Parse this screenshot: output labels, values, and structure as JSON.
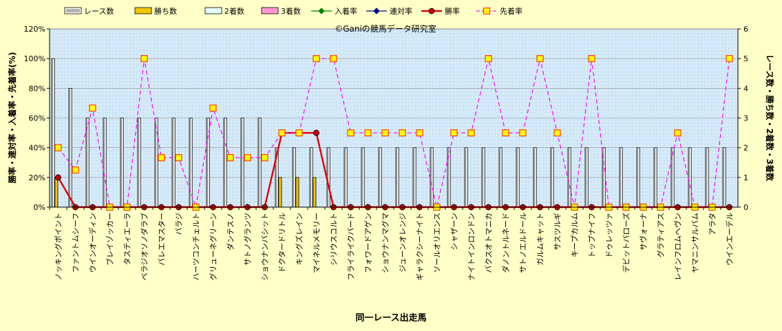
{
  "chart_data": {
    "type": "bar",
    "watermark": "©Ganiの競馬データ研究室",
    "xlabel": "同一レース出走馬",
    "ylabel_left": "勝率・連対率・入着率・先着率(%)",
    "ylabel_right": "レース数・勝ち数・2着数・3着数",
    "ylim_left": [
      0,
      120
    ],
    "yticks_left": [
      "0%",
      "20%",
      "40%",
      "60%",
      "80%",
      "100%",
      "120%"
    ],
    "ylim_right": [
      0,
      6
    ],
    "yticks_right": [
      "0",
      "1",
      "2",
      "3",
      "4",
      "5",
      "6"
    ],
    "grid": "horizontal",
    "legend_position": "top",
    "colors": {
      "background": "#ffffc8",
      "plot_bg": "#cfe6f6",
      "races_bar": "#ffffff",
      "wins_bar": "#f2c500",
      "second_bar": "#e4fbfb",
      "third_bar": "#ff9ad0",
      "place_rate": "#008000",
      "rentai_rate": "#000080",
      "win_rate": "#e00000",
      "senchaku_rate": "#ff00ff",
      "watermark": "#5a8fd6"
    },
    "categories": [
      "ノッキングポイント",
      "ファントムシーフ",
      "ウインオーディン",
      "ブレイゾッカー",
      "タスティエーラ",
      "ベラジオソノダラブ",
      "バレエマスター",
      "バラジ",
      "ハーツコンチェルト",
      "グリューネグリーン",
      "ダンテスノ",
      "サトノグランツ",
      "ショウナンバシット",
      "ドクタードリトル",
      "キングズレイン",
      "マイネルメモリー",
      "シリウスコルト",
      "フライライクバード",
      "フォワードアゲン",
      "ショウナンマグマ",
      "ジューンオレンジ",
      "ギャラクシーナイト",
      "ソールオリエンス",
      "シャザーン",
      "ナイトインロンドン",
      "バクスオトマニカ",
      "ダノントルネード",
      "サトノエルドール",
      "ガルムキャット",
      "サスツルギ",
      "キープカルム",
      "トップナイフ",
      "ドゥレッツァ",
      "デビットバローズ",
      "サヴォーナ",
      "グラティアス",
      "レインフロムヘヴン",
      "ヤマニンサルバム",
      "アラタ",
      "ウインエーデル"
    ],
    "series": [
      {
        "name": "レース数",
        "kind": "bar",
        "axis": "right",
        "values": [
          5,
          4,
          3,
          3,
          3,
          3,
          3,
          3,
          3,
          3,
          3,
          3,
          3,
          2,
          2,
          2,
          2,
          2,
          2,
          2,
          2,
          2,
          2,
          2,
          2,
          2,
          2,
          2,
          2,
          2,
          2,
          2,
          2,
          2,
          2,
          2,
          2,
          2,
          2,
          2
        ]
      },
      {
        "name": "勝ち数",
        "kind": "bar",
        "axis": "right",
        "values": [
          1,
          0,
          0,
          0,
          0,
          0,
          0,
          0,
          0,
          0,
          0,
          0,
          0,
          1,
          1,
          1,
          0,
          0,
          0,
          0,
          0,
          0,
          0,
          0,
          0,
          0,
          0,
          0,
          0,
          0,
          0,
          0,
          0,
          0,
          0,
          0,
          0,
          0,
          0,
          0
        ]
      },
      {
        "name": "2着数",
        "kind": "bar",
        "axis": "right",
        "values": [
          0,
          0,
          0,
          0,
          0,
          0,
          0,
          0,
          0,
          0,
          0,
          0,
          0,
          0,
          0,
          0,
          0,
          0,
          0,
          0,
          0,
          0,
          0,
          0,
          0,
          0,
          0,
          0,
          0,
          0,
          0,
          0,
          0,
          0,
          0,
          0,
          0,
          0,
          0,
          0
        ]
      },
      {
        "name": "3着数",
        "kind": "bar",
        "axis": "right",
        "values": [
          0,
          0,
          0,
          0,
          0,
          0,
          0,
          0,
          0,
          0,
          0,
          0,
          0,
          0,
          0,
          0,
          0,
          0,
          0,
          0,
          0,
          0,
          0,
          0,
          0,
          0,
          0,
          0,
          0,
          0,
          0,
          0,
          0,
          0,
          0,
          0,
          0,
          0,
          0,
          0
        ]
      },
      {
        "name": "入着率",
        "kind": "line",
        "axis": "left",
        "values": [
          20,
          0,
          0,
          0,
          0,
          0,
          0,
          0,
          0,
          0,
          0,
          0,
          0,
          50,
          50,
          50,
          0,
          0,
          0,
          0,
          0,
          0,
          0,
          0,
          0,
          0,
          0,
          0,
          0,
          0,
          0,
          0,
          0,
          0,
          0,
          0,
          0,
          0,
          0,
          0
        ]
      },
      {
        "name": "連対率",
        "kind": "line",
        "axis": "left",
        "values": [
          20,
          0,
          0,
          0,
          0,
          0,
          0,
          0,
          0,
          0,
          0,
          0,
          0,
          50,
          50,
          50,
          0,
          0,
          0,
          0,
          0,
          0,
          0,
          0,
          0,
          0,
          0,
          0,
          0,
          0,
          0,
          0,
          0,
          0,
          0,
          0,
          0,
          0,
          0,
          0
        ]
      },
      {
        "name": "勝率",
        "kind": "line",
        "axis": "left",
        "values": [
          20,
          0,
          0,
          0,
          0,
          0,
          0,
          0,
          0,
          0,
          0,
          0,
          0,
          50,
          50,
          50,
          0,
          0,
          0,
          0,
          0,
          0,
          0,
          0,
          0,
          0,
          0,
          0,
          0,
          0,
          0,
          0,
          0,
          0,
          0,
          0,
          0,
          0,
          0,
          0
        ]
      },
      {
        "name": "先着率",
        "kind": "line",
        "axis": "left",
        "values": [
          40,
          25,
          66.7,
          0,
          0,
          100,
          33.3,
          33.3,
          0,
          66.7,
          33.3,
          33.3,
          33.3,
          50,
          50,
          100,
          100,
          50,
          50,
          50,
          50,
          50,
          0,
          50,
          50,
          100,
          50,
          50,
          100,
          50,
          0,
          100,
          0,
          0,
          0,
          0,
          50,
          0,
          0,
          100
        ]
      }
    ]
  }
}
